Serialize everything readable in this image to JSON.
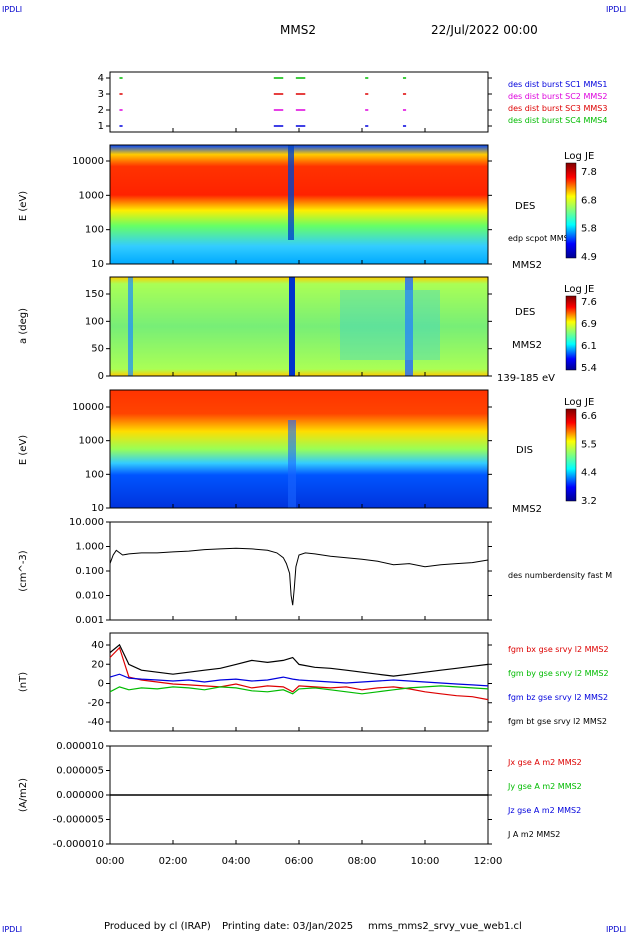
{
  "header": {
    "left_tag": "IPDLI",
    "right_tag": "IPDLI",
    "title": "MMS2",
    "datetime": "22/Jul/2022 00:00",
    "bottom_left_tag": "IPDLI",
    "bottom_right_tag": "IPDLI"
  },
  "footer": {
    "produced_by": "Produced by cl (IRAP)",
    "printing_date": "Printing date: 03/Jan/2025",
    "filename": "mms_mms2_srvy_vue_web1.cl"
  },
  "colors": {
    "mms1": "#0000dd",
    "mms2": "#dd00dd",
    "mms3": "#dd0000",
    "mms4": "#00bb00",
    "bx": "#dd0000",
    "by": "#00bb00",
    "bz": "#0000dd",
    "bt": "#000000"
  },
  "x_ticks": [
    "00:00",
    "02:00",
    "04:00",
    "06:00",
    "08:00",
    "10:00",
    "12:00"
  ],
  "chart_data": [
    {
      "type": "scatter",
      "panel": "burst",
      "y_ticks": [
        "4",
        "3",
        "2",
        "1"
      ],
      "x_range_hours": [
        0,
        12
      ],
      "legend": [
        "des dist burst SC1 MMS1",
        "des dist burst SC2 MMS2",
        "des dist burst SC3 MMS3",
        "des dist burst SC4 MMS4"
      ],
      "burst_intervals_hours": [
        [
          0.3,
          0.4
        ],
        [
          5.2,
          5.5
        ],
        [
          5.9,
          6.2
        ],
        [
          8.1,
          8.2
        ],
        [
          9.3,
          9.4
        ]
      ]
    },
    {
      "type": "heatmap",
      "panel": "des_energy",
      "ylabel": "E (eV)",
      "y_ticks": [
        "10000",
        "1000",
        "100",
        "10"
      ],
      "ylim": [
        10,
        30000
      ],
      "yscale": "log",
      "label": "DES",
      "sub_label": "edp scpot MMS2",
      "spacecraft": "MMS2",
      "colorbar": {
        "title": "Log JE",
        "ticks": [
          "7.8",
          "6.8",
          "5.8",
          "4.9"
        ],
        "range": [
          4.9,
          7.8
        ]
      }
    },
    {
      "type": "heatmap",
      "panel": "des_pitch",
      "ylabel": "a (deg)",
      "y_ticks": [
        "150",
        "100",
        "50",
        "0"
      ],
      "ylim": [
        0,
        180
      ],
      "label": "DES",
      "spacecraft": "MMS2",
      "energy_range": "139-185 eV",
      "colorbar": {
        "title": "Log JE",
        "ticks": [
          "7.6",
          "6.9",
          "6.1",
          "5.4"
        ],
        "range": [
          5.4,
          7.6
        ]
      }
    },
    {
      "type": "heatmap",
      "panel": "dis_energy",
      "ylabel": "E (eV)",
      "y_ticks": [
        "10000",
        "1000",
        "100",
        "10"
      ],
      "ylim": [
        10,
        30000
      ],
      "yscale": "log",
      "label": "DIS",
      "spacecraft": "MMS2",
      "colorbar": {
        "title": "Log JE",
        "ticks": [
          "6.6",
          "5.5",
          "4.4",
          "3.2"
        ],
        "range": [
          3.2,
          6.6
        ]
      }
    },
    {
      "type": "line",
      "panel": "density",
      "ylabel": "(cm^-3)",
      "y_ticks": [
        "10.000",
        "1.000",
        "0.100",
        "0.010",
        "0.001"
      ],
      "ylim": [
        0.001,
        10
      ],
      "yscale": "log",
      "legend": [
        "des numberdensity fast M"
      ],
      "x": [
        0,
        0.1,
        0.2,
        0.4,
        0.6,
        1.0,
        1.5,
        2.0,
        2.5,
        3.0,
        3.5,
        4.0,
        4.5,
        5.0,
        5.3,
        5.5,
        5.6,
        5.7,
        5.75,
        5.8,
        5.85,
        5.9,
        6.0,
        6.2,
        6.5,
        7.0,
        7.5,
        8.0,
        8.5,
        9.0,
        9.5,
        10.0,
        10.5,
        11.0,
        11.5,
        12.0
      ],
      "y": [
        0.2,
        0.45,
        0.7,
        0.45,
        0.5,
        0.55,
        0.55,
        0.6,
        0.65,
        0.75,
        0.8,
        0.85,
        0.8,
        0.7,
        0.55,
        0.35,
        0.2,
        0.08,
        0.01,
        0.004,
        0.02,
        0.15,
        0.45,
        0.55,
        0.5,
        0.4,
        0.35,
        0.3,
        0.25,
        0.18,
        0.2,
        0.15,
        0.18,
        0.2,
        0.22,
        0.28
      ]
    },
    {
      "type": "line",
      "panel": "magnetic_field",
      "ylabel": "(nT)",
      "y_ticks": [
        "40",
        "20",
        "0",
        "-20",
        "-40"
      ],
      "ylim": [
        -50,
        50
      ],
      "legend": [
        "fgm bx gse srvy l2 MMS2",
        "fgm by gse srvy l2 MMS2",
        "fgm bz gse srvy l2 MMS2",
        "fgm bt gse srvy l2 MMS2"
      ],
      "x": [
        0,
        0.3,
        0.6,
        1.0,
        1.5,
        2.0,
        2.5,
        3.0,
        3.5,
        4.0,
        4.5,
        5.0,
        5.5,
        5.8,
        6.0,
        6.5,
        7.0,
        7.5,
        8.0,
        8.5,
        9.0,
        9.5,
        10.0,
        10.5,
        11.0,
        11.5,
        12.0
      ],
      "series": [
        {
          "name": "fgm bx gse srvy l2 MMS2",
          "values": [
            25,
            35,
            5,
            2,
            0,
            -2,
            -3,
            -4,
            -5,
            -2,
            -6,
            -4,
            -5,
            -10,
            -4,
            -5,
            -6,
            -5,
            -8,
            -6,
            -5,
            -7,
            -10,
            -12,
            -14,
            -15,
            -18
          ]
        },
        {
          "name": "fgm by gse srvy l2 MMS2",
          "values": [
            -10,
            -5,
            -8,
            -6,
            -7,
            -5,
            -6,
            -8,
            -5,
            -6,
            -9,
            -10,
            -8,
            -12,
            -7,
            -6,
            -8,
            -10,
            -12,
            -10,
            -8,
            -6,
            -5,
            -4,
            -5,
            -6,
            -7
          ]
        },
        {
          "name": "fgm bz gse srvy l2 MMS2",
          "values": [
            5,
            8,
            4,
            3,
            2,
            1,
            2,
            0,
            2,
            3,
            1,
            2,
            5,
            3,
            2,
            1,
            0,
            -1,
            0,
            1,
            2,
            1,
            0,
            -1,
            -2,
            -3,
            -4
          ]
        },
        {
          "name": "fgm bt gse srvy l2 MMS2",
          "values": [
            30,
            38,
            18,
            12,
            10,
            8,
            10,
            12,
            14,
            18,
            22,
            20,
            22,
            25,
            18,
            15,
            14,
            12,
            10,
            8,
            6,
            8,
            10,
            12,
            14,
            16,
            18
          ]
        }
      ]
    },
    {
      "type": "line",
      "panel": "current",
      "ylabel": "(A/m2)",
      "y_ticks": [
        "0.000010",
        "0.000005",
        "0.000000",
        "-0.000005",
        "-0.000010"
      ],
      "ylim": [
        -1e-05,
        1e-05
      ],
      "legend": [
        "Jx gse A m2 MMS2",
        "Jy gse A m2 MMS2",
        "Jz gse A m2 MMS2",
        "J A m2 MMS2"
      ],
      "x": [
        0,
        12
      ],
      "y": [
        0,
        0
      ]
    }
  ]
}
